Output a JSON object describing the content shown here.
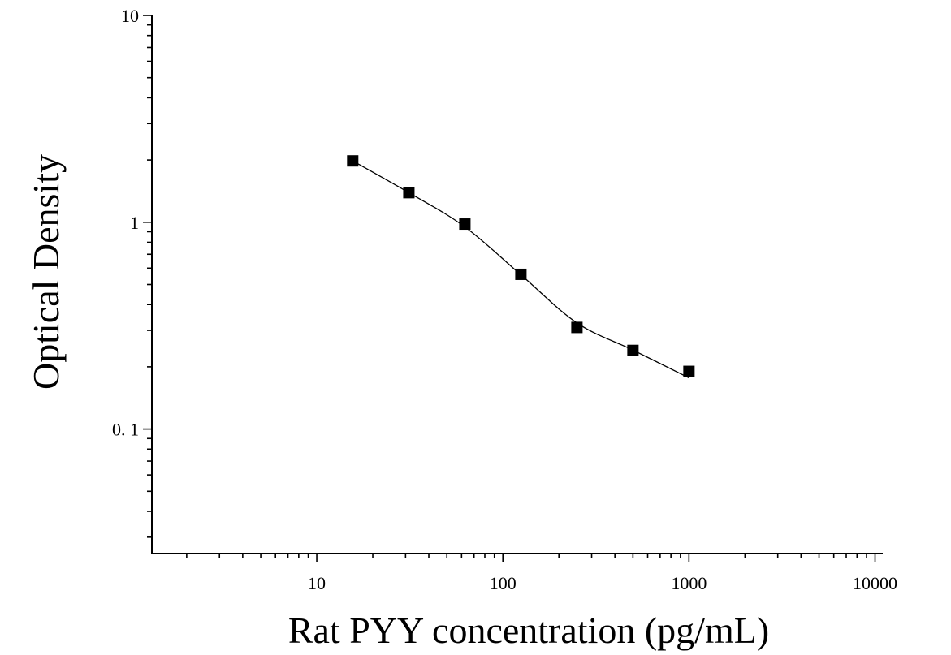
{
  "chart_data": {
    "type": "scatter",
    "title": "",
    "xlabel": "Rat PYY concentration (pg/mL)",
    "ylabel": "Optical Density",
    "x_scale": "log",
    "y_scale": "log",
    "xlim": [
      1.3,
      11000
    ],
    "ylim": [
      0.025,
      10
    ],
    "x_ticks": [
      10,
      100,
      1000,
      10000
    ],
    "x_tick_labels": [
      "10",
      "100",
      "1000",
      "10000"
    ],
    "y_ticks": [
      0.1,
      1,
      10
    ],
    "y_tick_labels": [
      "0. 1",
      "1",
      "10"
    ],
    "grid": false,
    "series": [
      {
        "x": [
          15.6,
          31.25,
          62.5,
          125,
          250,
          500,
          1000
        ],
        "y": [
          1.98,
          1.39,
          0.98,
          0.56,
          0.31,
          0.24,
          0.19
        ],
        "marker": "square",
        "color": "#000000"
      }
    ],
    "fit_curve": {
      "type": "4PL",
      "x_range": [
        15.6,
        1000
      ],
      "color": "#000000"
    }
  }
}
